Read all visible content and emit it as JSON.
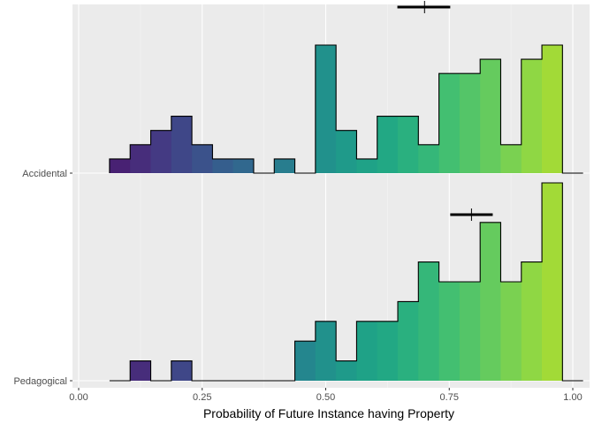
{
  "chart_data": {
    "type": "bar",
    "subtype": "stacked-histogram-ridgeline",
    "xlabel": "Probability of Future Instance having Property",
    "ylabel": "",
    "xlim": [
      0,
      1
    ],
    "x_ticks": [
      0.0,
      0.25,
      0.5,
      0.75,
      1.0
    ],
    "x_tick_labels": [
      "0.00",
      "0.25",
      "0.50",
      "0.75",
      "1.00"
    ],
    "grid": true,
    "colormap": "viridis",
    "bin_width": 0.0417,
    "bins": [
      0.0833,
      0.125,
      0.1667,
      0.2083,
      0.25,
      0.2917,
      0.3333,
      0.375,
      0.4167,
      0.4583,
      0.5,
      0.5417,
      0.5833,
      0.625,
      0.6667,
      0.7083,
      0.75,
      0.7917,
      0.8333,
      0.875,
      0.9167,
      0.9583,
      1.0
    ],
    "bin_colors": [
      "#482173",
      "#472d7b",
      "#443a83",
      "#3f4788",
      "#3b528b",
      "#355e8d",
      "#31688e",
      "#2c728e",
      "#287d8e",
      "#24868e",
      "#21918c",
      "#1f9a8a",
      "#1fa287",
      "#22a884",
      "#2ab07f",
      "#35b779",
      "#43bf71",
      "#54c568",
      "#65cb5e",
      "#7ad151",
      "#8fd744",
      "#a2da37",
      "#b2dd2d"
    ],
    "series": [
      {
        "name": "Accidental",
        "values": [
          1,
          2,
          3,
          4,
          2,
          1,
          1,
          0,
          1,
          0,
          9,
          3,
          1,
          4,
          4,
          2,
          7,
          7,
          8,
          2,
          8,
          9,
          0
        ],
        "mean": 0.7,
        "ci": [
          0.645,
          0.752
        ]
      },
      {
        "name": "Pedagogical",
        "values": [
          0,
          1,
          0,
          1,
          0,
          0,
          0,
          0,
          0,
          2,
          3,
          1,
          3,
          3,
          4,
          6,
          5,
          5,
          8,
          5,
          6,
          10,
          0
        ],
        "mean": 0.795,
        "ci": [
          0.752,
          0.838
        ]
      }
    ]
  }
}
